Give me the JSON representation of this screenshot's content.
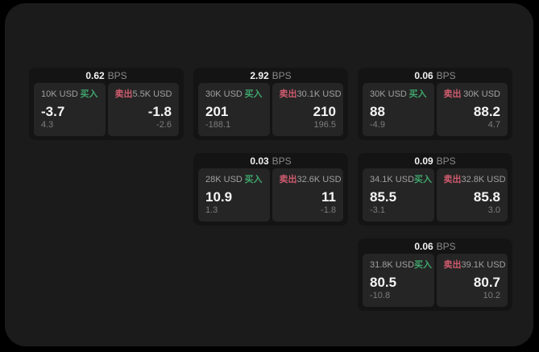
{
  "colors": {
    "page_bg": "#000000",
    "window_bg": "#1b1b1b",
    "card_bg": "#141414",
    "panel_bg": "#252525",
    "buy": "#3fa56c",
    "sell": "#cf5b6e",
    "value_text": "#f5f5f5",
    "label_text": "#a0a0a0",
    "sub_text": "#7d7d7d"
  },
  "labels": {
    "bps_unit": "BPS",
    "buy": "买入",
    "sell": "卖出"
  },
  "cards": [
    {
      "bps": "0.62",
      "buy": {
        "notional": "10K USD",
        "price": "-3.7",
        "sub": "4.3"
      },
      "sell": {
        "notional": "5.5K USD",
        "price": "-1.8",
        "sub": "-2.6"
      }
    },
    {
      "bps": "2.92",
      "buy": {
        "notional": "30K USD",
        "price": "201",
        "sub": "-188.1"
      },
      "sell": {
        "notional": "30.1K USD",
        "price": "210",
        "sub": "196.5"
      }
    },
    {
      "bps": "0.06",
      "buy": {
        "notional": "30K USD",
        "price": "88",
        "sub": "-4.9"
      },
      "sell": {
        "notional": "30K USD",
        "price": "88.2",
        "sub": "4.7"
      }
    },
    {
      "bps": "0.03",
      "buy": {
        "notional": "28K USD",
        "price": "10.9",
        "sub": "1.3"
      },
      "sell": {
        "notional": "32.6K USD",
        "price": "11",
        "sub": "-1.8"
      }
    },
    {
      "bps": "0.09",
      "buy": {
        "notional": "34.1K USD",
        "price": "85.5",
        "sub": "-3.1"
      },
      "sell": {
        "notional": "32.8K USD",
        "price": "85.8",
        "sub": "3.0"
      }
    },
    {
      "bps": "0.06",
      "buy": {
        "notional": "31.8K USD",
        "price": "80.5",
        "sub": "-10.8"
      },
      "sell": {
        "notional": "39.1K USD",
        "price": "80.7",
        "sub": "10.2"
      }
    }
  ]
}
